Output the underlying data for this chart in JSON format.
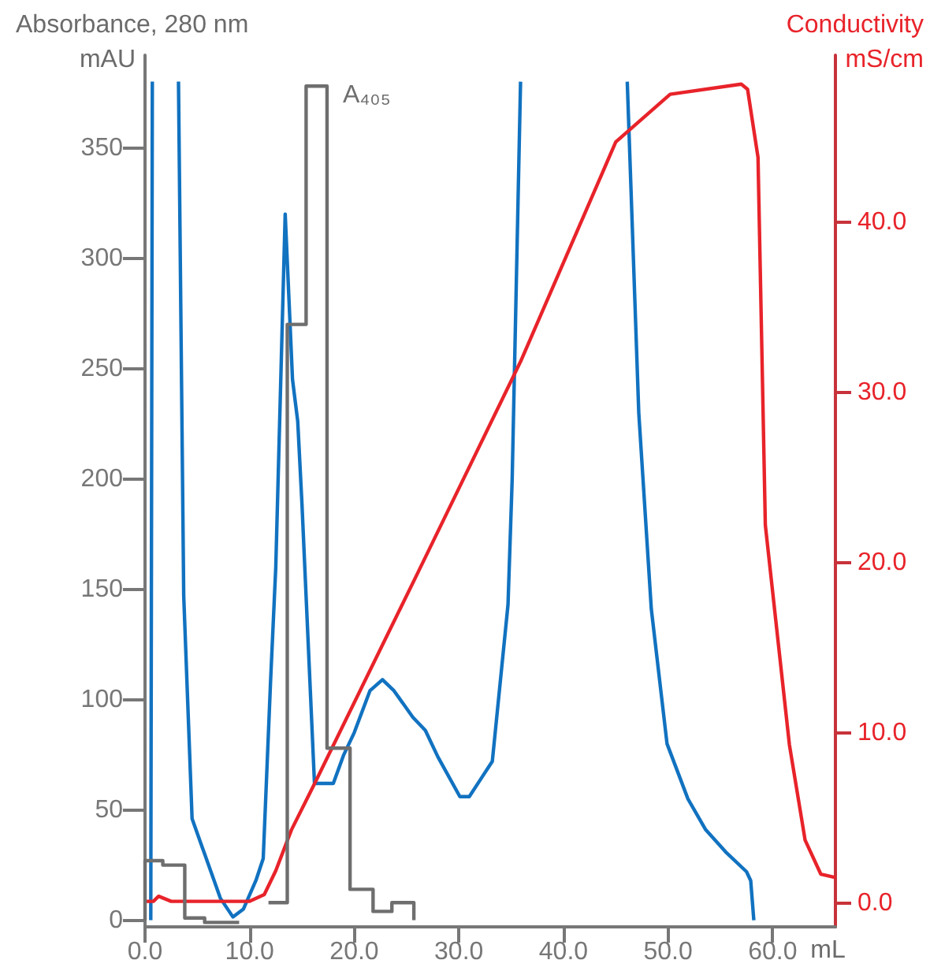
{
  "chart_data": {
    "type": "line",
    "xlabel": "mL",
    "ylabel": "Absorbance, 280 nm\nmAU",
    "y2label": "Conductivity\nmS/cm",
    "xlim": [
      0,
      66
    ],
    "xticks": [
      {
        "value": 0,
        "label": "0.0"
      },
      {
        "value": 10,
        "label": "10.0"
      },
      {
        "value": 20,
        "label": "20.0"
      },
      {
        "value": 30,
        "label": "30.0"
      },
      {
        "value": 40,
        "label": "40.0"
      },
      {
        "value": 50,
        "label": "50.0"
      },
      {
        "value": 60,
        "label": "60.0"
      }
    ],
    "ylim": [
      -3,
      392
    ],
    "yticks": [
      0,
      50,
      100,
      150,
      200,
      250,
      300,
      350
    ],
    "y2lim": [
      -1.4,
      49.8
    ],
    "y2ticks": [
      {
        "value": 0,
        "label": "0.0"
      },
      {
        "value": 10,
        "label": "10.0"
      },
      {
        "value": 20,
        "label": "20.0"
      },
      {
        "value": 30,
        "label": "30.0"
      },
      {
        "value": 40,
        "label": "40.0"
      }
    ],
    "grid": false,
    "legend": false,
    "series": [
      {
        "color": "#1172c0",
        "x": [
          0.55,
          0.7,
          1.5,
          3.2,
          3.7,
          4.5,
          5.7,
          7.2,
          8.4,
          9.4,
          10.6,
          11.3,
          12.0,
          12.5,
          13.4,
          14.1,
          14.6,
          15.0,
          16.2,
          16.8,
          18.0,
          19.0,
          20.0,
          21.5,
          22.7,
          23.8,
          25.6,
          26.8,
          28.0,
          30.1,
          31.0,
          32.1,
          33.2,
          34.7,
          35.1,
          35.9,
          40.0,
          46.1,
          47.2,
          48.4,
          49.9,
          51.9,
          53.6,
          55.5,
          57.5,
          57.9,
          58.2
        ],
        "values": [
          0,
          380,
          null,
          380,
          147,
          46,
          30,
          10,
          1.5,
          5,
          18,
          28,
          108,
          160,
          320,
          245,
          226,
          189,
          62,
          62,
          62,
          75,
          85,
          104,
          109,
          104,
          92,
          86,
          74,
          56,
          56,
          64,
          72,
          143,
          200,
          380,
          null,
          380,
          230,
          141,
          80,
          55,
          41,
          31,
          22,
          18,
          0
        ]
      },
      {
        "type": "line",
        "axis": "y2",
        "color": "#e8232a",
        "x": [
          0,
          0.8,
          1.3,
          2.5,
          10.0,
          11.4,
          12.5,
          14.0,
          16.2,
          26.0,
          35.9,
          45.0,
          50.2,
          57.0,
          57.6,
          58.6,
          59.3,
          61.6,
          63.1,
          64.6,
          66.0
        ],
        "values": [
          0.1,
          0.1,
          0.4,
          0.1,
          0.1,
          0.5,
          1.9,
          4.3,
          7.0,
          19.3,
          31.8,
          44.7,
          47.5,
          48.1,
          47.8,
          43.8,
          22.2,
          9.3,
          3.7,
          1.7,
          1.5
        ]
      },
      {
        "type": "step",
        "name": "A₄₀₅",
        "color": "#6e6e6e",
        "x": [
          0,
          0,
          1.7,
          3.8,
          5.7,
          7.7,
          9.0,
          11.8,
          13.6,
          15.4,
          17.4,
          19.6,
          21.8,
          23.6,
          25.7,
          25.7
        ],
        "values": [
          0,
          27,
          25,
          1,
          -1,
          -1,
          null,
          8,
          270,
          378,
          78,
          14,
          4,
          8,
          8,
          0
        ]
      }
    ]
  }
}
